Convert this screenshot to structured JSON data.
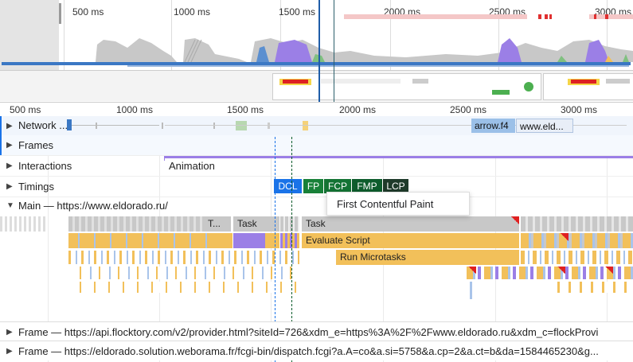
{
  "overview": {
    "ticks": [
      "500 ms",
      "1000 ms",
      "1500 ms",
      "2000 ms",
      "2500 ms",
      "3000 ms"
    ]
  },
  "ruler": {
    "ticks": [
      "500 ms",
      "1000 ms",
      "1500 ms",
      "2000 ms",
      "2500 ms",
      "3000 ms"
    ]
  },
  "tracks": {
    "network": {
      "label": "Network ...",
      "requests": [
        "arrow.f4",
        "www.eld..."
      ]
    },
    "frames": {
      "label": "Frames"
    },
    "interactions": {
      "label": "Interactions",
      "animation": "Animation"
    },
    "timings": {
      "label": "Timings",
      "markers": [
        "DCL",
        "FP",
        "FCP",
        "FMP",
        "LCP"
      ]
    },
    "main": {
      "label": "Main — https://www.eldorado.ru/"
    }
  },
  "tooltip": "First Contentful Paint",
  "flame": {
    "t_short": "T...",
    "task_a": "Task",
    "task_b": "Task",
    "evaluate": "Evaluate Script",
    "microtasks": "Run Microtasks"
  },
  "frames_list": [
    "Frame — https://api.flocktory.com/v2/provider.html?siteId=726&xdm_e=https%3A%2F%2Fwww.eldorado.ru&xdm_c=flockProvi",
    "Frame — https://eldorado.solution.weborama.fr/fcgi-bin/dispatch.fcgi?a.A=co&a.si=5758&a.cp=2&a.ct=b&da=1584465230&g..."
  ],
  "colors": {
    "dcl": "#1a73e8",
    "fp": "#188038",
    "fcp": "#137333",
    "fmp": "#0d5c2c",
    "lcp": "#1e3a2a",
    "scripting": "#f2c05a",
    "task": "#c8c8c8",
    "rendering": "#9b7fe6",
    "painting": "#80c080",
    "network_blue": "#3b78c4"
  }
}
